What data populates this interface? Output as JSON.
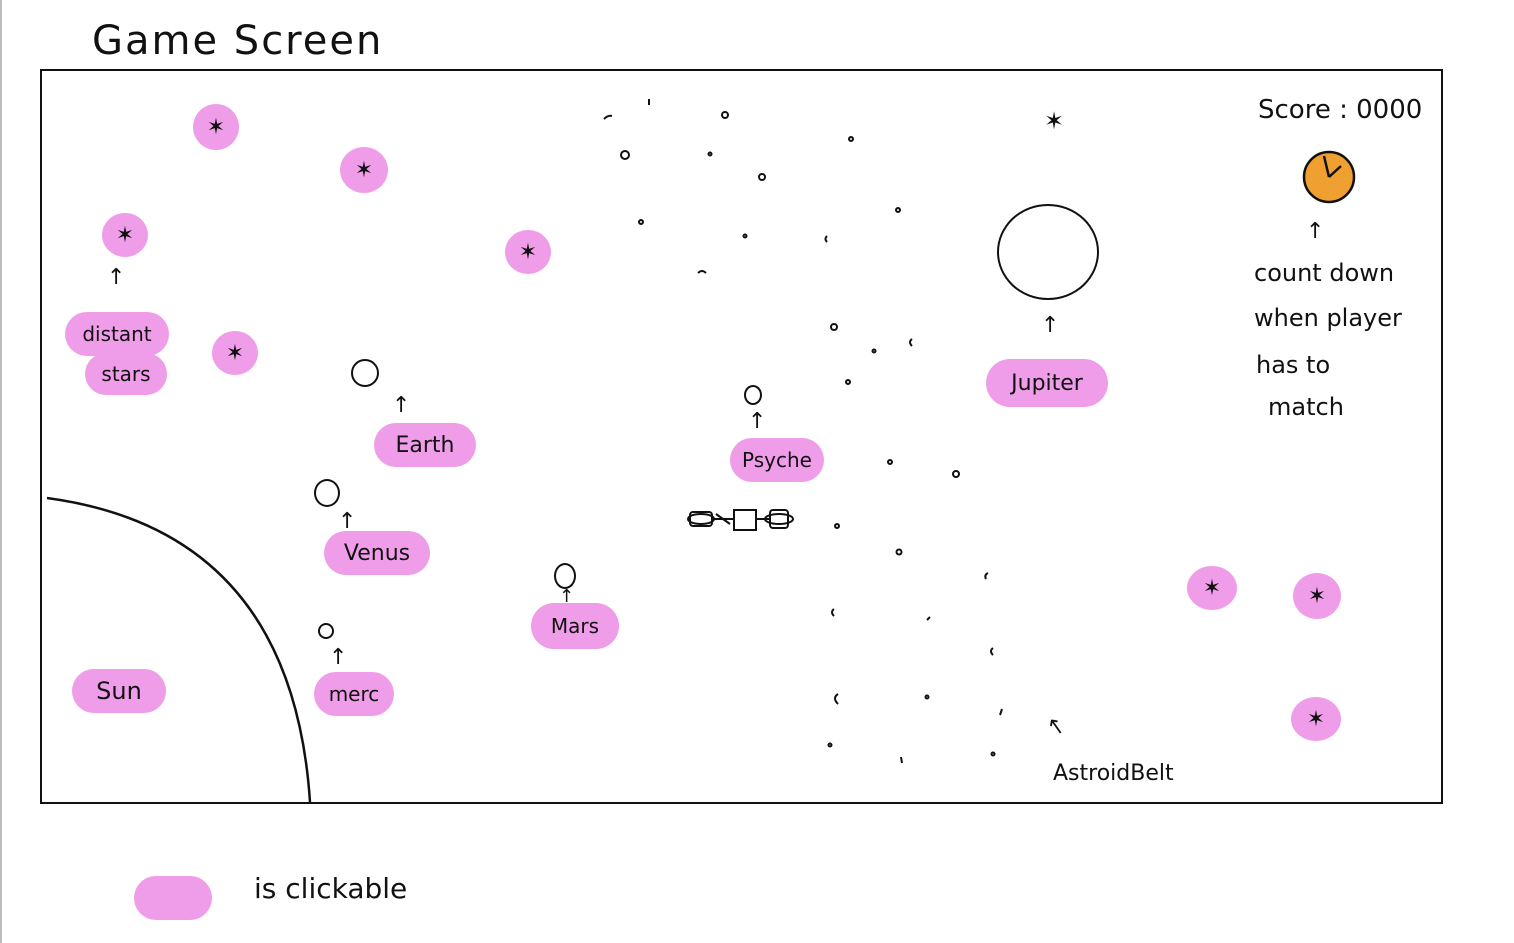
{
  "title": "Game Screen",
  "score": {
    "label": "Score",
    "value": "0000"
  },
  "timer_note": [
    "count down",
    "when player",
    "has to",
    "match"
  ],
  "planets": {
    "earth": "Earth",
    "venus": "Venus",
    "mercury": "merc",
    "mars": "Mars",
    "psyche": "Psyche",
    "jupiter": "Jupiter"
  },
  "sun_label": "Sun",
  "distant_stars": [
    "distant",
    "stars"
  ],
  "asteroid_belt_label": "AstroidBelt",
  "legend_text": "is clickable",
  "icons": {
    "star": "star-icon",
    "satellite": "spacecraft-icon",
    "timer": "countdown-timer-icon"
  },
  "colors": {
    "clickable": "#ef9de8",
    "timer": "#f0a030",
    "ink": "#111111"
  }
}
